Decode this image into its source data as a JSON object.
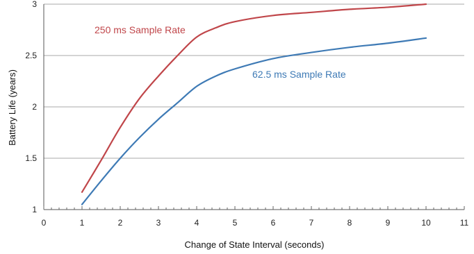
{
  "chart_data": {
    "type": "line",
    "title": "",
    "xlabel": "Change of State Interval (seconds)",
    "ylabel": "Battery Life (years)",
    "xlim": [
      0,
      11
    ],
    "ylim": [
      1,
      3
    ],
    "x_ticks": [
      "0",
      "1",
      "2",
      "3",
      "4",
      "5",
      "6",
      "7",
      "8",
      "9",
      "10",
      "11"
    ],
    "y_ticks": [
      "1",
      "1.5",
      "2",
      "2.5",
      "3"
    ],
    "grid": "horizontal",
    "legend": "inline labels",
    "series": [
      {
        "name": "250 ms Sample Rate",
        "color": "#c0464a",
        "x": [
          1,
          1.5,
          2,
          2.5,
          3,
          3.5,
          4,
          4.5,
          5,
          6,
          7,
          8,
          9,
          10
        ],
        "y": [
          1.17,
          1.48,
          1.8,
          2.08,
          2.3,
          2.5,
          2.68,
          2.77,
          2.83,
          2.89,
          2.92,
          2.95,
          2.97,
          3.0
        ]
      },
      {
        "name": "62.5 ms Sample Rate",
        "color": "#3e7ab5",
        "x": [
          1,
          1.5,
          2,
          2.5,
          3,
          3.5,
          4,
          4.5,
          5,
          6,
          7,
          8,
          9,
          10
        ],
        "y": [
          1.05,
          1.28,
          1.5,
          1.7,
          1.88,
          2.04,
          2.2,
          2.3,
          2.37,
          2.47,
          2.53,
          2.58,
          2.62,
          2.67
        ]
      }
    ]
  }
}
